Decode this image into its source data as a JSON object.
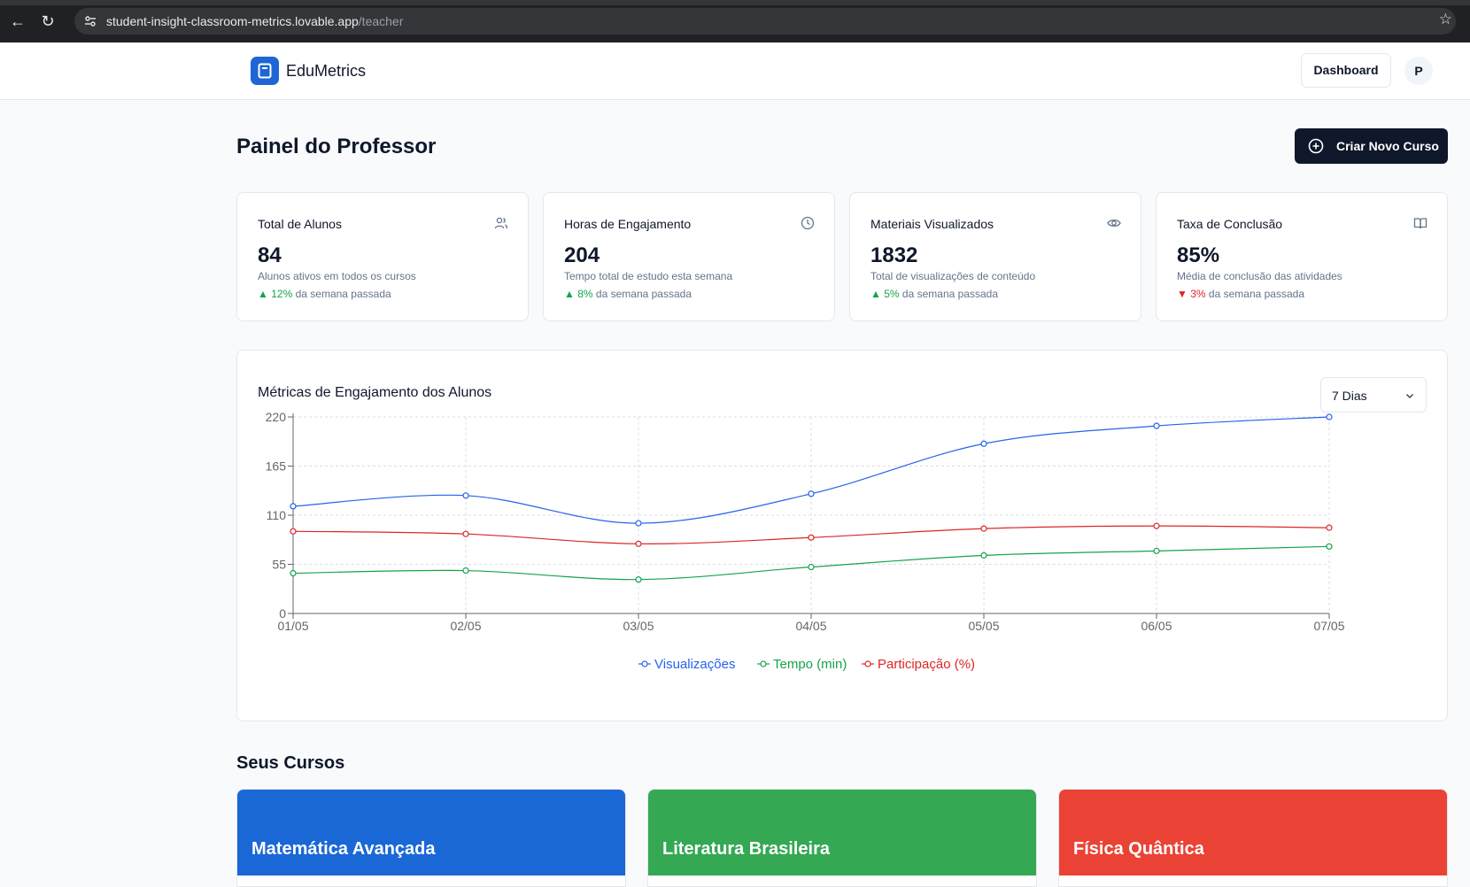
{
  "browser": {
    "url_domain": "student-insight-classroom-metrics.lovable.app",
    "url_path": "/teacher"
  },
  "header": {
    "brand": "EduMetrics",
    "dashboard_label": "Dashboard",
    "avatar_initial": "P"
  },
  "page": {
    "title": "Painel do Professor",
    "create_course_label": "Criar Novo Curso"
  },
  "stats": [
    {
      "label": "Total de Alunos",
      "value": "84",
      "desc": "Alunos ativos em todos os cursos",
      "trend_arrow": "▲",
      "trend_value": "12%",
      "trend_text": " da semana passada",
      "trend_dir": "up",
      "icon": "users-icon"
    },
    {
      "label": "Horas de Engajamento",
      "value": "204",
      "desc": "Tempo total de estudo esta semana",
      "trend_arrow": "▲",
      "trend_value": "8%",
      "trend_text": " da semana passada",
      "trend_dir": "up",
      "icon": "clock-icon"
    },
    {
      "label": "Materiais Visualizados",
      "value": "1832",
      "desc": "Total de visualizações de conteúdo",
      "trend_arrow": "▲",
      "trend_value": "5%",
      "trend_text": " da semana passada",
      "trend_dir": "up",
      "icon": "eye-icon"
    },
    {
      "label": "Taxa de Conclusão",
      "value": "85%",
      "desc": "Média de conclusão das atividades",
      "trend_arrow": "▼",
      "trend_value": "3%",
      "trend_text": " da semana passada",
      "trend_dir": "down",
      "icon": "book-open-icon"
    }
  ],
  "chart_section": {
    "title": "Métricas de Engajamento dos Alunos",
    "range_label": "7 Dias"
  },
  "chart_data": {
    "type": "line",
    "title": "Métricas de Engajamento dos Alunos",
    "x": [
      "01/05",
      "02/05",
      "03/05",
      "04/05",
      "05/05",
      "06/05",
      "07/05"
    ],
    "yticks": [
      0,
      55,
      110,
      165,
      220
    ],
    "ylim": [
      0,
      220
    ],
    "grid": true,
    "legend_position": "bottom-center",
    "series": [
      {
        "name": "Visualizações",
        "color": "#2563eb",
        "values": [
          120,
          132,
          101,
          134,
          190,
          210,
          220
        ]
      },
      {
        "name": "Tempo (min)",
        "color": "#16a34a",
        "values": [
          45,
          48,
          38,
          52,
          65,
          70,
          75
        ]
      },
      {
        "name": "Participação (%)",
        "color": "#dc2626",
        "values": [
          92,
          89,
          78,
          85,
          95,
          98,
          96
        ]
      }
    ]
  },
  "courses": {
    "title": "Seus Cursos",
    "items": [
      {
        "name": "Matemática Avançada",
        "color": "#1a68d6"
      },
      {
        "name": "Literatura Brasileira",
        "color": "#34a853"
      },
      {
        "name": "Física Quântica",
        "color": "#ea4335"
      }
    ]
  }
}
